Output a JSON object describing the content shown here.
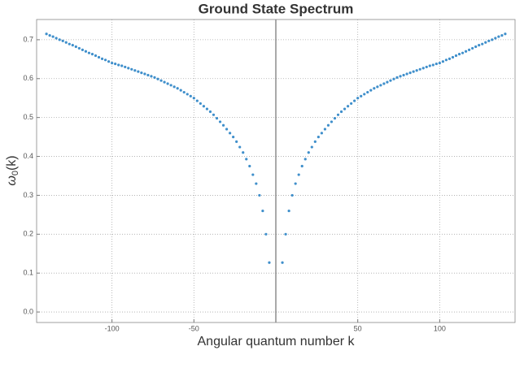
{
  "chart_data": {
    "type": "scatter",
    "title": "Ground State Spectrum",
    "x_label": "Angular quantum number k",
    "y_label": {
      "base": "ω",
      "sub": "0",
      "rest": "(k)"
    },
    "color": "#3f8fcb",
    "grid": true,
    "xlim": [
      -146,
      146
    ],
    "ylim": [
      -0.027,
      0.752
    ],
    "xticks": [
      -100,
      -50,
      50,
      100
    ],
    "yticks": [
      {
        "value": 0,
        "label": "0.0"
      },
      0.1,
      0.2,
      0.3,
      0.4,
      0.5,
      0.6,
      0.7
    ],
    "x": [
      -140,
      -138,
      -136,
      -134,
      -132,
      -130,
      -128,
      -126,
      -124,
      -122,
      -120,
      -118,
      -116,
      -114,
      -112,
      -110,
      -108,
      -106,
      -104,
      -102,
      -100,
      -98,
      -96,
      -94,
      -92,
      -90,
      -88,
      -86,
      -84,
      -82,
      -80,
      -78,
      -76,
      -74,
      -72,
      -70,
      -68,
      -66,
      -64,
      -62,
      -60,
      -58,
      -56,
      -54,
      -52,
      -50,
      -48,
      -46,
      -44,
      -42,
      -40,
      -38,
      -36,
      -34,
      -32,
      -30,
      -28,
      -26,
      -24,
      -22,
      -20,
      -18,
      -16,
      -14,
      -12,
      -10,
      -8,
      -6,
      -4,
      4,
      6,
      8,
      10,
      12,
      14,
      16,
      18,
      20,
      22,
      24,
      26,
      28,
      30,
      32,
      34,
      36,
      38,
      40,
      42,
      44,
      46,
      48,
      50,
      52,
      54,
      56,
      58,
      60,
      62,
      64,
      66,
      68,
      70,
      72,
      74,
      76,
      78,
      80,
      82,
      84,
      86,
      88,
      90,
      92,
      94,
      96,
      98,
      100,
      102,
      104,
      106,
      108,
      110,
      112,
      114,
      116,
      118,
      120,
      122,
      124,
      126,
      128,
      130,
      132,
      134,
      136,
      138,
      140
    ],
    "values": [
      0.715,
      0.711,
      0.708,
      0.704,
      0.7,
      0.697,
      0.693,
      0.689,
      0.686,
      0.682,
      0.678,
      0.674,
      0.67,
      0.666,
      0.663,
      0.659,
      0.655,
      0.651,
      0.648,
      0.644,
      0.64,
      0.638,
      0.635,
      0.633,
      0.63,
      0.627,
      0.624,
      0.621,
      0.618,
      0.615,
      0.612,
      0.609,
      0.606,
      0.603,
      0.599,
      0.595,
      0.591,
      0.587,
      0.583,
      0.579,
      0.575,
      0.57,
      0.565,
      0.56,
      0.555,
      0.55,
      0.543,
      0.536,
      0.529,
      0.522,
      0.515,
      0.507,
      0.498,
      0.489,
      0.48,
      0.47,
      0.46,
      0.45,
      0.438,
      0.424,
      0.41,
      0.393,
      0.375,
      0.353,
      0.33,
      0.3,
      0.26,
      0.2,
      0.127,
      0.127,
      0.2,
      0.26,
      0.3,
      0.33,
      0.353,
      0.375,
      0.393,
      0.41,
      0.424,
      0.438,
      0.45,
      0.46,
      0.47,
      0.48,
      0.489,
      0.498,
      0.507,
      0.515,
      0.522,
      0.529,
      0.536,
      0.543,
      0.55,
      0.555,
      0.56,
      0.565,
      0.57,
      0.575,
      0.579,
      0.583,
      0.587,
      0.591,
      0.595,
      0.599,
      0.603,
      0.606,
      0.609,
      0.612,
      0.615,
      0.618,
      0.621,
      0.624,
      0.627,
      0.63,
      0.633,
      0.635,
      0.638,
      0.64,
      0.644,
      0.648,
      0.651,
      0.655,
      0.659,
      0.663,
      0.666,
      0.67,
      0.674,
      0.678,
      0.682,
      0.686,
      0.689,
      0.693,
      0.697,
      0.7,
      0.704,
      0.708,
      0.711,
      0.715
    ]
  }
}
